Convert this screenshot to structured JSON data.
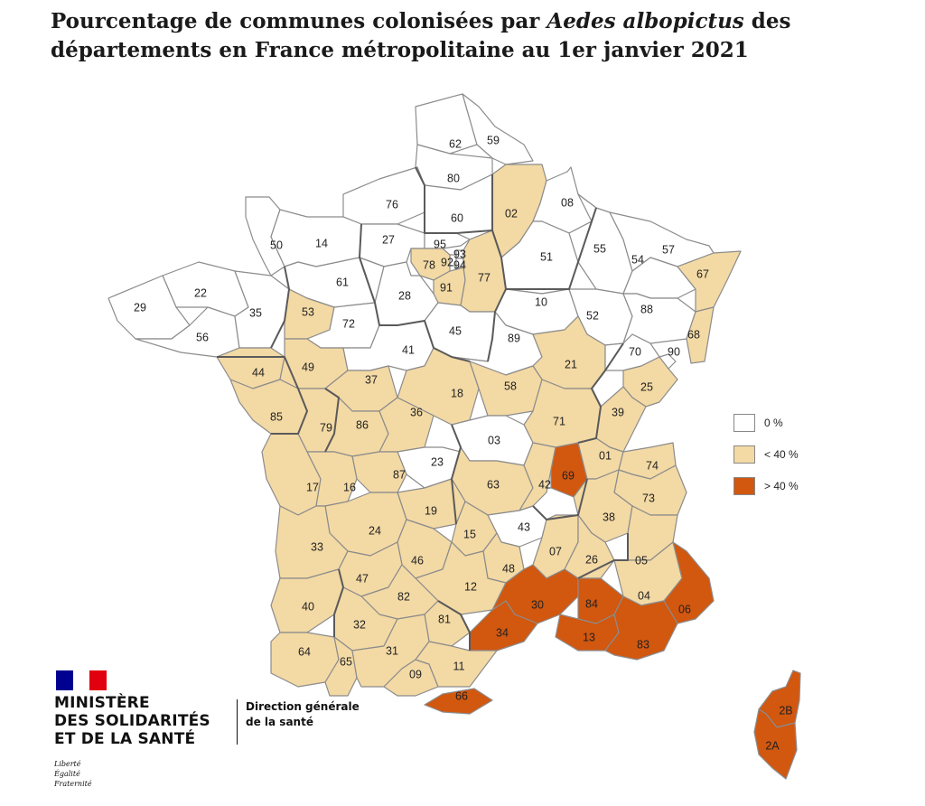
{
  "title": {
    "part1": "Pourcentage de communes colonisées par ",
    "species": "Aedes albopictus",
    "part2": " des",
    "line2": "départements en France métropolitaine au 1er janvier 2021"
  },
  "legend": {
    "items": [
      {
        "label": "0 %",
        "color": "#ffffff"
      },
      {
        "label": "< 40 %",
        "color": "#f3d9a4"
      },
      {
        "label": "> 40 %",
        "color": "#d2570f"
      }
    ]
  },
  "categories": {
    "none": "#ffffff",
    "low": "#f3d9a4",
    "high": "#d2570f"
  },
  "departments": [
    {
      "code": "62",
      "cat": "none"
    },
    {
      "code": "59",
      "cat": "none"
    },
    {
      "code": "80",
      "cat": "none"
    },
    {
      "code": "76",
      "cat": "none"
    },
    {
      "code": "60",
      "cat": "none"
    },
    {
      "code": "02",
      "cat": "low"
    },
    {
      "code": "08",
      "cat": "none"
    },
    {
      "code": "50",
      "cat": "none"
    },
    {
      "code": "14",
      "cat": "none"
    },
    {
      "code": "27",
      "cat": "none"
    },
    {
      "code": "95",
      "cat": "none"
    },
    {
      "code": "93",
      "cat": "none"
    },
    {
      "code": "92",
      "cat": "none"
    },
    {
      "code": "94",
      "cat": "none"
    },
    {
      "code": "78",
      "cat": "low"
    },
    {
      "code": "91",
      "cat": "low"
    },
    {
      "code": "77",
      "cat": "low"
    },
    {
      "code": "51",
      "cat": "none"
    },
    {
      "code": "55",
      "cat": "none"
    },
    {
      "code": "57",
      "cat": "none"
    },
    {
      "code": "54",
      "cat": "none"
    },
    {
      "code": "67",
      "cat": "low"
    },
    {
      "code": "22",
      "cat": "none"
    },
    {
      "code": "29",
      "cat": "none"
    },
    {
      "code": "56",
      "cat": "none"
    },
    {
      "code": "35",
      "cat": "none"
    },
    {
      "code": "61",
      "cat": "none"
    },
    {
      "code": "53",
      "cat": "low"
    },
    {
      "code": "72",
      "cat": "none"
    },
    {
      "code": "28",
      "cat": "none"
    },
    {
      "code": "45",
      "cat": "none"
    },
    {
      "code": "10",
      "cat": "none"
    },
    {
      "code": "52",
      "cat": "none"
    },
    {
      "code": "88",
      "cat": "none"
    },
    {
      "code": "68",
      "cat": "low"
    },
    {
      "code": "44",
      "cat": "low"
    },
    {
      "code": "49",
      "cat": "low"
    },
    {
      "code": "41",
      "cat": "none"
    },
    {
      "code": "89",
      "cat": "none"
    },
    {
      "code": "21",
      "cat": "low"
    },
    {
      "code": "70",
      "cat": "none"
    },
    {
      "code": "90",
      "cat": "none"
    },
    {
      "code": "37",
      "cat": "low"
    },
    {
      "code": "18",
      "cat": "low"
    },
    {
      "code": "58",
      "cat": "low"
    },
    {
      "code": "25",
      "cat": "low"
    },
    {
      "code": "85",
      "cat": "low"
    },
    {
      "code": "79",
      "cat": "low"
    },
    {
      "code": "86",
      "cat": "low"
    },
    {
      "code": "36",
      "cat": "low"
    },
    {
      "code": "71",
      "cat": "low"
    },
    {
      "code": "39",
      "cat": "low"
    },
    {
      "code": "03",
      "cat": "none"
    },
    {
      "code": "23",
      "cat": "none"
    },
    {
      "code": "87",
      "cat": "low"
    },
    {
      "code": "17",
      "cat": "low"
    },
    {
      "code": "16",
      "cat": "low"
    },
    {
      "code": "63",
      "cat": "low"
    },
    {
      "code": "42",
      "cat": "low"
    },
    {
      "code": "69",
      "cat": "high"
    },
    {
      "code": "01",
      "cat": "low"
    },
    {
      "code": "74",
      "cat": "low"
    },
    {
      "code": "73",
      "cat": "low"
    },
    {
      "code": "19",
      "cat": "low"
    },
    {
      "code": "24",
      "cat": "low"
    },
    {
      "code": "33",
      "cat": "low"
    },
    {
      "code": "15",
      "cat": "low"
    },
    {
      "code": "43",
      "cat": "none"
    },
    {
      "code": "38",
      "cat": "low"
    },
    {
      "code": "07",
      "cat": "low"
    },
    {
      "code": "26",
      "cat": "low"
    },
    {
      "code": "05",
      "cat": "low"
    },
    {
      "code": "46",
      "cat": "low"
    },
    {
      "code": "47",
      "cat": "low"
    },
    {
      "code": "48",
      "cat": "low"
    },
    {
      "code": "12",
      "cat": "low"
    },
    {
      "code": "04",
      "cat": "low"
    },
    {
      "code": "06",
      "cat": "high"
    },
    {
      "code": "40",
      "cat": "low"
    },
    {
      "code": "82",
      "cat": "low"
    },
    {
      "code": "30",
      "cat": "high"
    },
    {
      "code": "84",
      "cat": "high"
    },
    {
      "code": "81",
      "cat": "low"
    },
    {
      "code": "32",
      "cat": "low"
    },
    {
      "code": "34",
      "cat": "high"
    },
    {
      "code": "13",
      "cat": "high"
    },
    {
      "code": "83",
      "cat": "high"
    },
    {
      "code": "64",
      "cat": "low"
    },
    {
      "code": "65",
      "cat": "low"
    },
    {
      "code": "31",
      "cat": "low"
    },
    {
      "code": "09",
      "cat": "low"
    },
    {
      "code": "11",
      "cat": "low"
    },
    {
      "code": "66",
      "cat": "high"
    },
    {
      "code": "2B",
      "cat": "high"
    },
    {
      "code": "2A",
      "cat": "high"
    }
  ],
  "logo": {
    "ministry_line1": "MINISTÈRE",
    "ministry_line2": "DES SOLIDARITÉS",
    "ministry_line3": "ET DE LA SANTÉ",
    "motto1": "Liberté",
    "motto2": "Égalité",
    "motto3": "Fraternité",
    "direction_line1": "Direction générale",
    "direction_line2": "de la santé",
    "flag_colors": [
      "#000091",
      "#ffffff",
      "#e1000f"
    ]
  }
}
